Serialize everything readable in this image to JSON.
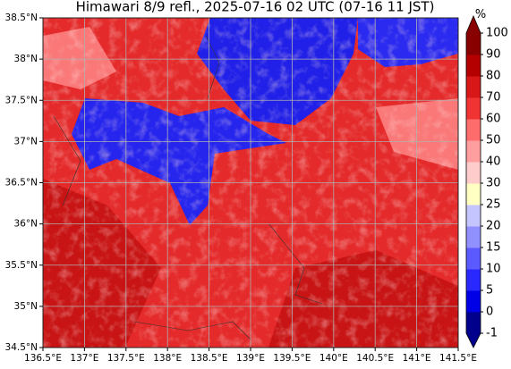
{
  "chart_data": {
    "type": "map",
    "title": "Himawari 8/9 refl., 2025-07-16 02 UTC (07-16 11 JST)",
    "xlim": [
      136.5,
      141.5
    ],
    "xticks": [
      {
        "value": 136.5,
        "label": "136.5°E"
      },
      {
        "value": 137,
        "label": "137°E"
      },
      {
        "value": 137.5,
        "label": "137.5°E"
      },
      {
        "value": 138,
        "label": "138°E"
      },
      {
        "value": 138.5,
        "label": "138.5°E"
      },
      {
        "value": 139,
        "label": "139°E"
      },
      {
        "value": 139.5,
        "label": "139.5°E"
      },
      {
        "value": 140,
        "label": "140°E"
      },
      {
        "value": 140.5,
        "label": "140.5°E"
      },
      {
        "value": 141,
        "label": "141°E"
      },
      {
        "value": 141.5,
        "label": "141.5°E"
      }
    ],
    "ylim": [
      34.5,
      38.5
    ],
    "yticks": [
      {
        "value": 34.5,
        "label": "34.5°N"
      },
      {
        "value": 35,
        "label": "35°N"
      },
      {
        "value": 35.5,
        "label": "35.5°N"
      },
      {
        "value": 36,
        "label": "36°N"
      },
      {
        "value": 36.5,
        "label": "36.5°N"
      },
      {
        "value": 37,
        "label": "37°N"
      },
      {
        "value": 37.5,
        "label": "37.5°N"
      },
      {
        "value": 38,
        "label": "38°N"
      },
      {
        "value": 38.5,
        "label": "38.5°N"
      }
    ],
    "grid": true,
    "colorbar": {
      "label": "%",
      "levels": [
        -1,
        0,
        5,
        10,
        15,
        20,
        25,
        30,
        40,
        50,
        60,
        70,
        80,
        90,
        100
      ],
      "colors": [
        "#00008c",
        "#0000e6",
        "#2828ff",
        "#5a5aff",
        "#9090ff",
        "#c4c4ff",
        "#ffffc4",
        "#ffcccc",
        "#ff9e9e",
        "#ff6c6c",
        "#f03434",
        "#d81818",
        "#b40000",
        "#880000"
      ],
      "under": "#00008c",
      "over": "#880000"
    }
  }
}
